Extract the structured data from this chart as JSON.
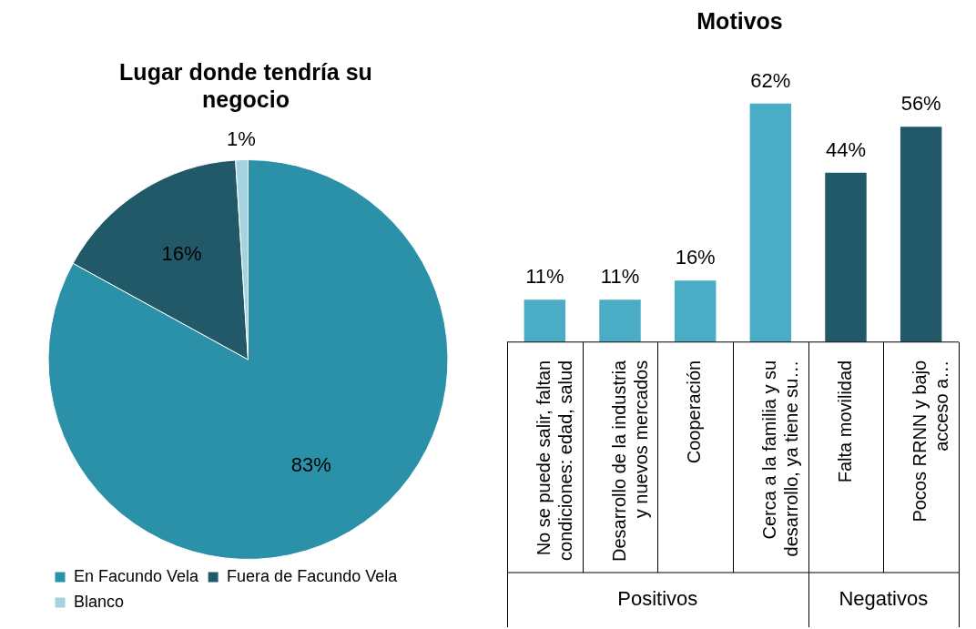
{
  "chart_data": [
    {
      "type": "pie",
      "title": "Lugar donde tendría su negocio",
      "categories": [
        "En Facundo Vela",
        "Fuera de Facundo Vela",
        "Blanco"
      ],
      "values": [
        83,
        16,
        1
      ],
      "colors": [
        "#2a91a8",
        "#215968",
        "#a5d3e0"
      ],
      "value_labels": [
        "83%",
        "16%",
        "1%"
      ],
      "legend": "bottom"
    },
    {
      "type": "bar",
      "title": "Motivos",
      "categories": [
        "No se puede salir, faltan\ncondiciones: edad, salud",
        "Desarrollo de la industria\ny nuevos mercados",
        "Cooperación",
        "Cerca a la familia y su\ndesarrollo, ya tiene su…",
        "Falta movilidad",
        "Pocos RRNN y bajo\nacceso a…"
      ],
      "values": [
        11,
        11,
        16,
        62,
        44,
        56
      ],
      "colors": [
        "#4bacc6",
        "#4bacc6",
        "#4bacc6",
        "#4bacc6",
        "#215968",
        "#215968"
      ],
      "value_labels": [
        "11%",
        "11%",
        "16%",
        "62%",
        "44%",
        "56%"
      ],
      "annotations": [
        "Positivos",
        "Negativos"
      ]
    }
  ]
}
